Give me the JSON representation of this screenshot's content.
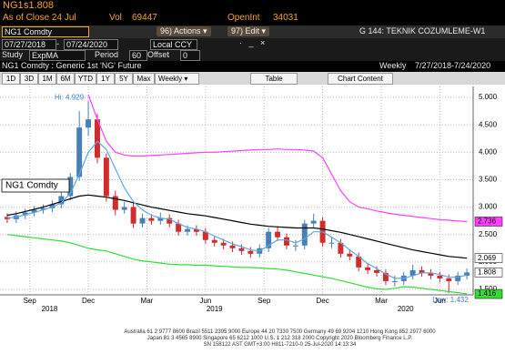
{
  "header": {
    "ticker": "NG1",
    "last": "s1.808",
    "as_of": "As of Close 24 Jul",
    "vol_label": "Vol",
    "vol": 69447,
    "oi_label": "OpenInt",
    "oi": 34031
  },
  "toolbar": {
    "security": "NG1 Comdty",
    "actions": "96) Actions",
    "edit": "97) Edit",
    "page": "G 144: TEKNIK COZUMLEME-W1"
  },
  "range": {
    "start": "07/27/2018",
    "end": "07/24/2020",
    "currency": "Local CCY"
  },
  "study": {
    "label": "Study",
    "name": "ExpMA",
    "period_label": "Period",
    "period": 60,
    "offset_label": "Offset",
    "offset": 0
  },
  "description": {
    "name": "NG1 Comdty : Generic 1st 'NG' Future",
    "frequency": "Weekly",
    "dates": "7/27/2018-7/24/2020"
  },
  "tabs": [
    "1D",
    "3D",
    "1M",
    "6M",
    "YTD",
    "1Y",
    "5Y",
    "Max",
    "Weekly"
  ],
  "buttons": [
    "Table",
    "Chart Content"
  ],
  "chart_data": {
    "type": "candlestick",
    "name": "NG1 Comdty",
    "up_color": "#4a7fb5",
    "down_color": "#d42a2a",
    "open": [
      2.82,
      2.78,
      2.85,
      2.9,
      2.95,
      2.98,
      3.05,
      3.2,
      3.55,
      4.45,
      4.6,
      3.9,
      3.2,
      2.95,
      3.0,
      2.7,
      2.8,
      2.75,
      2.8,
      2.7,
      2.55,
      2.6,
      2.55,
      2.4,
      2.35,
      2.3,
      2.25,
      2.2,
      2.15,
      2.25,
      2.55,
      2.45,
      2.3,
      2.3,
      2.7,
      2.75,
      2.35,
      2.35,
      2.15,
      2.1,
      1.9,
      1.85,
      1.8,
      1.65,
      1.65,
      1.75,
      1.85,
      1.8,
      1.75,
      1.7,
      1.65,
      1.75
    ],
    "high": [
      2.89,
      2.92,
      2.97,
      3.02,
      3.05,
      3.12,
      3.27,
      3.62,
      4.75,
      4.929,
      4.7,
      3.98,
      3.3,
      3.1,
      3.07,
      2.88,
      2.87,
      2.9,
      2.87,
      2.77,
      2.67,
      2.67,
      2.62,
      2.47,
      2.42,
      2.37,
      2.32,
      2.27,
      2.32,
      2.62,
      2.65,
      2.52,
      2.4,
      2.77,
      2.88,
      2.82,
      2.45,
      2.42,
      2.22,
      2.17,
      1.97,
      1.92,
      1.87,
      1.75,
      1.82,
      1.95,
      1.92,
      1.87,
      1.82,
      1.77,
      1.82,
      1.88
    ],
    "low": [
      2.71,
      2.71,
      2.78,
      2.83,
      2.88,
      2.91,
      2.98,
      3.13,
      3.48,
      4.3,
      3.8,
      3.1,
      2.85,
      2.88,
      2.62,
      2.63,
      2.68,
      2.68,
      2.63,
      2.48,
      2.48,
      2.48,
      2.33,
      2.28,
      2.23,
      2.18,
      2.13,
      2.08,
      2.08,
      2.18,
      2.38,
      2.23,
      2.2,
      2.23,
      2.63,
      2.28,
      2.25,
      2.08,
      2.03,
      1.83,
      1.78,
      1.73,
      1.58,
      1.55,
      1.58,
      1.68,
      1.73,
      1.68,
      1.63,
      1.432,
      1.58,
      1.68
    ],
    "close": [
      2.78,
      2.85,
      2.9,
      2.95,
      2.98,
      3.05,
      3.2,
      3.55,
      4.45,
      4.6,
      3.9,
      3.2,
      2.95,
      3.0,
      2.7,
      2.8,
      2.75,
      2.8,
      2.7,
      2.55,
      2.6,
      2.55,
      2.4,
      2.35,
      2.3,
      2.25,
      2.2,
      2.15,
      2.25,
      2.55,
      2.45,
      2.3,
      2.3,
      2.7,
      2.75,
      2.35,
      2.35,
      2.15,
      2.1,
      1.9,
      1.85,
      1.8,
      1.65,
      1.65,
      1.75,
      1.85,
      1.8,
      1.75,
      1.7,
      1.65,
      1.75,
      1.808
    ],
    "lines": [
      {
        "color": "#ff40ff",
        "flag": true,
        "values": [
          null,
          null,
          null,
          null,
          null,
          null,
          null,
          null,
          null,
          5.05,
          4.6,
          4.2,
          4.0,
          3.95,
          3.93,
          3.93,
          3.94,
          3.95,
          3.96,
          3.97,
          3.98,
          3.99,
          4.0,
          4.0,
          4.01,
          4.02,
          4.03,
          4.04,
          4.05,
          4.05,
          4.06,
          4.05,
          4.05,
          4.04,
          4.02,
          3.9,
          3.6,
          3.3,
          3.1,
          3.0,
          2.97,
          2.93,
          2.9,
          2.87,
          2.85,
          2.83,
          2.81,
          2.79,
          2.77,
          2.76,
          2.745,
          2.736
        ]
      },
      {
        "color": "#000000",
        "flag": true,
        "values": [
          2.85,
          2.88,
          2.92,
          2.96,
          3.0,
          3.05,
          3.1,
          3.15,
          3.2,
          3.22,
          3.2,
          3.18,
          3.15,
          3.12,
          3.08,
          3.04,
          3.0,
          2.97,
          2.94,
          2.91,
          2.88,
          2.86,
          2.84,
          2.81,
          2.78,
          2.75,
          2.72,
          2.69,
          2.67,
          2.65,
          2.64,
          2.63,
          2.62,
          2.62,
          2.62,
          2.6,
          2.57,
          2.54,
          2.5,
          2.46,
          2.42,
          2.38,
          2.34,
          2.3,
          2.26,
          2.22,
          2.19,
          2.16,
          2.13,
          2.1,
          2.085,
          2.069
        ]
      },
      {
        "color": "#5aa9e6",
        "flag": false,
        "values": [
          2.8,
          2.82,
          2.86,
          2.9,
          2.95,
          3.0,
          3.08,
          3.25,
          3.6,
          4.0,
          4.2,
          4.05,
          3.7,
          3.35,
          3.1,
          2.95,
          2.85,
          2.8,
          2.78,
          2.7,
          2.63,
          2.6,
          2.55,
          2.47,
          2.4,
          2.33,
          2.28,
          2.22,
          2.2,
          2.3,
          2.4,
          2.4,
          2.35,
          2.42,
          2.55,
          2.55,
          2.45,
          2.35,
          2.22,
          2.1,
          1.97,
          1.88,
          1.78,
          1.7,
          1.7,
          1.75,
          1.8,
          1.8,
          1.77,
          1.72,
          1.72,
          1.76
        ]
      },
      {
        "color": "#33dd33",
        "flag": true,
        "values": [
          2.5,
          2.48,
          2.46,
          2.44,
          2.42,
          2.4,
          2.38,
          2.35,
          2.3,
          2.25,
          2.22,
          2.2,
          2.15,
          2.1,
          2.05,
          2.02,
          2.0,
          1.98,
          1.96,
          1.95,
          1.95,
          1.94,
          1.94,
          1.93,
          1.92,
          1.91,
          1.9,
          1.9,
          1.89,
          1.88,
          1.87,
          1.85,
          1.82,
          1.79,
          1.76,
          1.73,
          1.7,
          1.66,
          1.62,
          1.58,
          1.54,
          1.51,
          1.5,
          1.52,
          1.55,
          1.54,
          1.52,
          1.5,
          1.48,
          1.46,
          1.44,
          1.416
        ]
      }
    ],
    "annotations": {
      "high": "Hi: 4.929",
      "low": "Low: 1.432"
    },
    "ylim": [
      1.4,
      5.2
    ],
    "yticks": [
      {
        "value": 1.5,
        "label": "1.500"
      },
      {
        "value": 2,
        "label": "2.000"
      },
      {
        "value": 2.5,
        "label": "2.500"
      },
      {
        "value": 3,
        "label": "3.000"
      },
      {
        "value": 3.5,
        "label": "3.500"
      },
      {
        "value": 4,
        "label": "4.000"
      },
      {
        "value": 4.5,
        "label": "4.500"
      },
      {
        "value": 5,
        "label": "5.000"
      }
    ],
    "xlim": [
      -0.8,
      51.7
    ],
    "xticks": [
      {
        "value": 2.5,
        "label": "Sep"
      },
      {
        "value": 9,
        "label": "Dec"
      },
      {
        "value": 15.5,
        "label": "Mar"
      },
      {
        "value": 22,
        "label": "Jun"
      },
      {
        "value": 28.5,
        "label": "Sep"
      },
      {
        "value": 35,
        "label": "Dec"
      },
      {
        "value": 41.5,
        "label": "Mar"
      },
      {
        "value": 48,
        "label": "Jun"
      }
    ],
    "year_ticks": [
      {
        "value": 4.7,
        "label": "2018"
      },
      {
        "value": 23,
        "label": "2019"
      },
      {
        "value": 44.2,
        "label": "2020"
      }
    ],
    "grid": true
  },
  "footer": [
    "Australia 61 2 9777 8600 Brazil 5511 2395 9000 Europe 44 20 7330 7500 Germany 49 69 9204 1210 Hong Kong 852 2977 6000",
    "Japan 81 3 4565 8900   Singapore 65 6212 1000   U.S. 1 212 318 2000   Copyright 2020 Bloomberg Finance L.P.",
    "SN 158122 AST GMT+3:00 H811-7210-0 25-Jul-2020 14:13:34"
  ]
}
